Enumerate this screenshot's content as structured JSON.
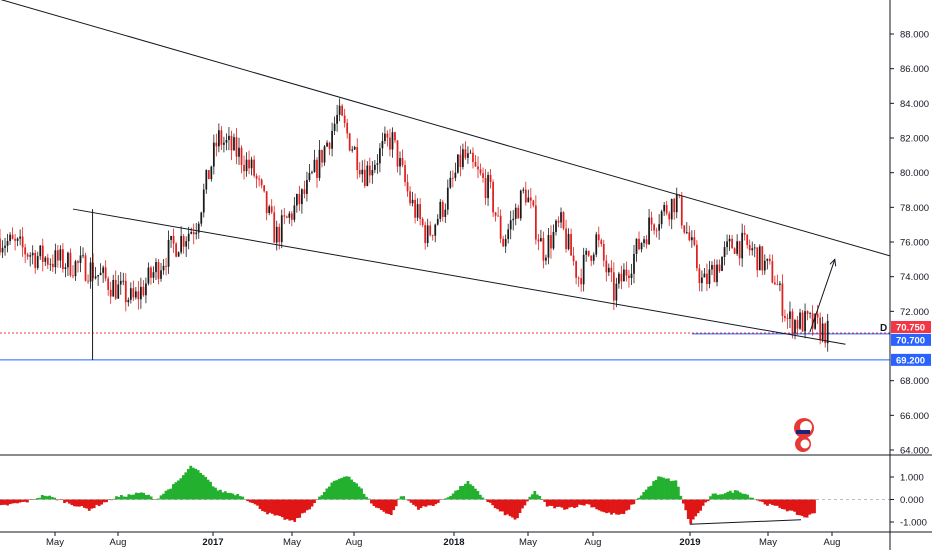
{
  "chart_data": [
    {
      "type": "candlestick",
      "title": "",
      "y_axis_ticks": [
        "88.000",
        "86.000",
        "84.000",
        "82.000",
        "80.000",
        "78.000",
        "76.000",
        "74.000",
        "72.000",
        "68.000",
        "66.000",
        "64.000"
      ],
      "ylim": [
        63.5,
        89.5
      ],
      "x_axis_ticks": [
        "May",
        "Aug",
        "2017",
        "May",
        "Aug",
        "2018",
        "May",
        "Aug",
        "2019",
        "May",
        "Aug"
      ],
      "x_year_ticks": [
        "2017",
        "2018",
        "2019"
      ],
      "price_labels": [
        {
          "value": 70.75,
          "text": "70.750",
          "color": "#f23645"
        },
        {
          "value": 70.7,
          "text": "70.700",
          "color": "#2962ff"
        },
        {
          "value": 69.2,
          "text": "69.200",
          "color": "#2962ff"
        }
      ],
      "horizontal_lines": [
        {
          "value": 70.75,
          "style": "dotted",
          "color": "#f23645"
        },
        {
          "value": 69.2,
          "style": "solid",
          "color": "#2962ff"
        },
        {
          "value": 70.7,
          "style": "solid",
          "color": "#2962ff",
          "label": "D"
        }
      ],
      "path_points": [
        [
          0,
          76.2
        ],
        [
          0.04,
          75.2
        ],
        [
          0.1,
          74.5
        ],
        [
          0.15,
          72.6
        ],
        [
          0.19,
          75.5
        ],
        [
          0.22,
          77.0
        ],
        [
          0.245,
          82.0
        ],
        [
          0.27,
          81.0
        ],
        [
          0.285,
          80.0
        ],
        [
          0.31,
          76.3
        ],
        [
          0.345,
          79.0
        ],
        [
          0.38,
          83.3
        ],
        [
          0.41,
          80.0
        ],
        [
          0.44,
          82.0
        ],
        [
          0.46,
          78.5
        ],
        [
          0.48,
          76.3
        ],
        [
          0.5,
          78.3
        ],
        [
          0.52,
          81.0
        ],
        [
          0.55,
          79.0
        ],
        [
          0.565,
          76.0
        ],
        [
          0.59,
          79.0
        ],
        [
          0.61,
          75.5
        ],
        [
          0.63,
          77.0
        ],
        [
          0.65,
          74.0
        ],
        [
          0.67,
          76.2
        ],
        [
          0.69,
          73.0
        ],
        [
          0.71,
          75.0
        ],
        [
          0.73,
          77.0
        ],
        [
          0.76,
          78.5
        ],
        [
          0.775,
          76.0
        ],
        [
          0.79,
          73.5
        ],
        [
          0.81,
          75.0
        ],
        [
          0.825,
          76.0
        ],
        [
          0.845,
          75.5
        ],
        [
          0.87,
          74.0
        ],
        [
          0.885,
          71.5
        ],
        [
          0.91,
          71.3
        ],
        [
          0.93,
          70.75
        ]
      ],
      "trend_lines": [
        {
          "name": "upper",
          "from": [
            0.0,
            90.0
          ],
          "to": [
            1.0,
            75.2
          ]
        },
        {
          "name": "lower",
          "from": [
            0.082,
            77.9
          ],
          "to": [
            0.95,
            70.1
          ]
        }
      ],
      "projection": {
        "from": [
          0.91,
          70.8
        ],
        "to": [
          0.938,
          75.0
        ]
      },
      "wick_low": {
        "x": 0.104,
        "low": 69.2,
        "high": 77.9
      }
    },
    {
      "type": "histogram",
      "indicator": "oscillator",
      "y_axis_ticks": [
        "1.000",
        "0.000",
        "-1.000"
      ],
      "ylim": [
        -1.5,
        2.1
      ],
      "colors": {
        "positive": "#22b02e",
        "negative": "#e01616"
      },
      "path_points": [
        [
          0,
          -0.3
        ],
        [
          0.03,
          -0.1
        ],
        [
          0.05,
          0.2
        ],
        [
          0.08,
          -0.2
        ],
        [
          0.1,
          -0.45
        ],
        [
          0.13,
          0.1
        ],
        [
          0.16,
          0.3
        ],
        [
          0.175,
          0.0
        ],
        [
          0.2,
          0.8
        ],
        [
          0.215,
          1.5
        ],
        [
          0.23,
          1.0
        ],
        [
          0.245,
          0.4
        ],
        [
          0.27,
          0.2
        ],
        [
          0.3,
          -0.6
        ],
        [
          0.33,
          -1.0
        ],
        [
          0.35,
          -0.3
        ],
        [
          0.375,
          0.8
        ],
        [
          0.39,
          1.1
        ],
        [
          0.405,
          0.5
        ],
        [
          0.42,
          -0.3
        ],
        [
          0.44,
          -0.7
        ],
        [
          0.45,
          0.2
        ],
        [
          0.47,
          -0.4
        ],
        [
          0.49,
          -0.2
        ],
        [
          0.51,
          0.3
        ],
        [
          0.525,
          0.8
        ],
        [
          0.54,
          0.2
        ],
        [
          0.56,
          -0.5
        ],
        [
          0.58,
          -0.9
        ],
        [
          0.6,
          0.4
        ],
        [
          0.615,
          -0.3
        ],
        [
          0.635,
          -0.4
        ],
        [
          0.66,
          -0.2
        ],
        [
          0.68,
          -0.6
        ],
        [
          0.7,
          -0.7
        ],
        [
          0.72,
          0.2
        ],
        [
          0.74,
          1.0
        ],
        [
          0.76,
          0.8
        ],
        [
          0.775,
          -1.1
        ],
        [
          0.8,
          0.2
        ],
        [
          0.83,
          0.4
        ],
        [
          0.86,
          -0.2
        ],
        [
          0.88,
          -0.4
        ],
        [
          0.905,
          -0.8
        ],
        [
          0.915,
          -0.6
        ]
      ],
      "divergence_line": {
        "from": [
          0.775,
          -1.1
        ],
        "to": [
          0.9,
          -0.9
        ]
      }
    }
  ],
  "watermark": {
    "icon": "flame-logo-icon"
  }
}
